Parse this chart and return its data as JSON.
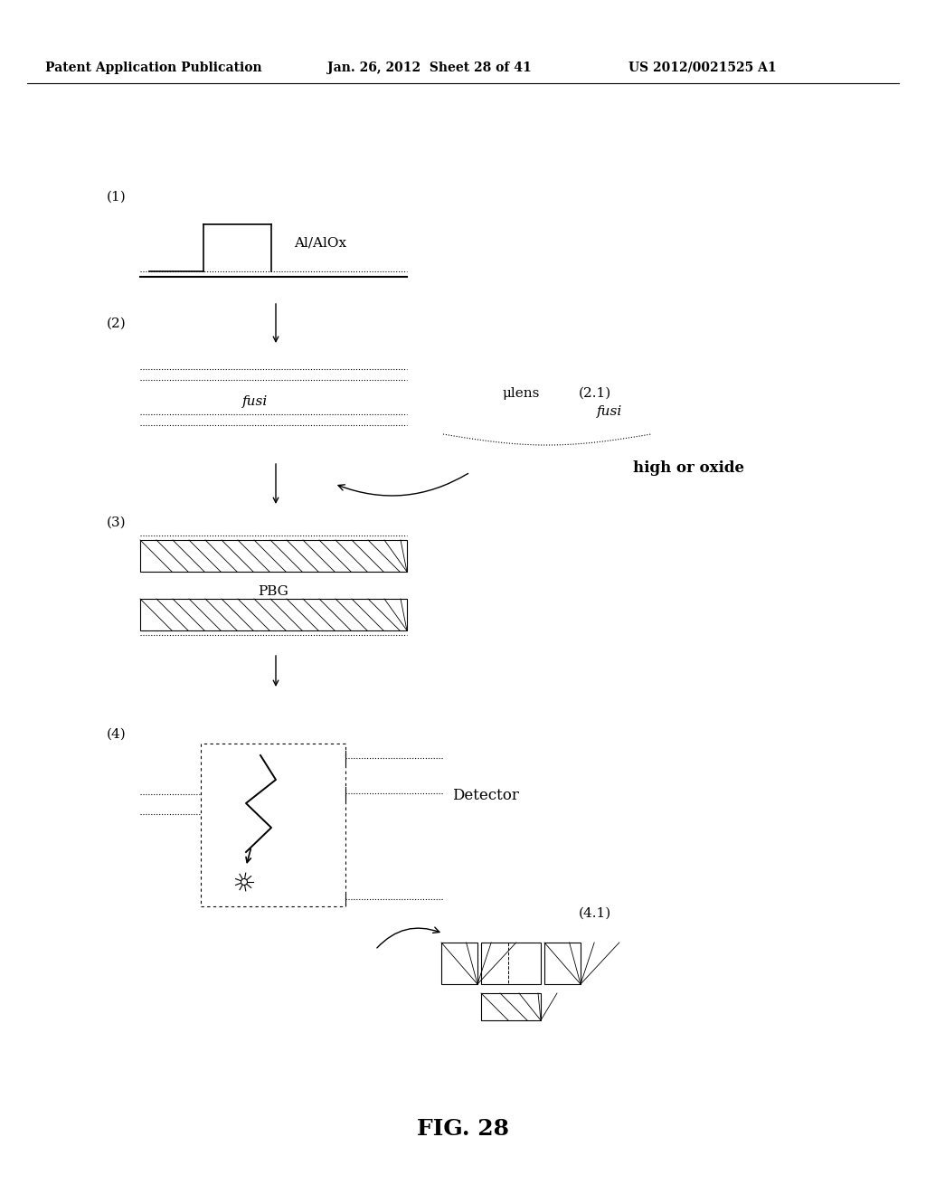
{
  "header_left": "Patent Application Publication",
  "header_center": "Jan. 26, 2012  Sheet 28 of 41",
  "header_right": "US 2012/0021525 A1",
  "fig_label": "FIG. 28",
  "background_color": "#ffffff",
  "text_color": "#000000"
}
